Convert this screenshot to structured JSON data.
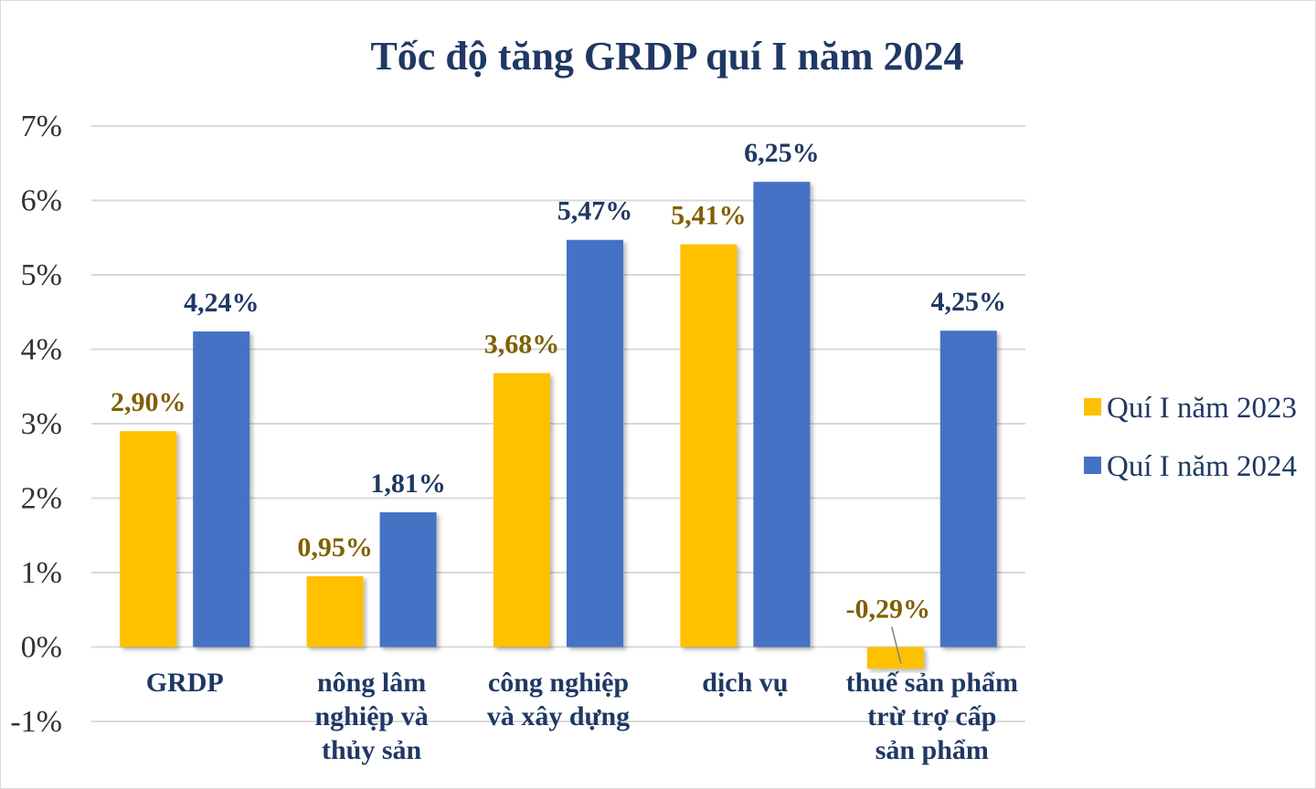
{
  "chart_data": {
    "type": "bar",
    "title": "Tốc độ tăng GRDP quí I năm 2024",
    "xlabel": "",
    "ylabel": "",
    "ylim": [
      -1,
      7
    ],
    "yticks": [
      "7%",
      "6%",
      "5%",
      "4%",
      "3%",
      "2%",
      "1%",
      "0%",
      "-1%"
    ],
    "yticks_values": [
      7,
      6,
      5,
      4,
      3,
      2,
      1,
      0,
      -1
    ],
    "categories": [
      [
        "GRDP"
      ],
      [
        "nông lâm",
        "nghiệp và",
        "thủy sản"
      ],
      [
        "công nghiệp",
        "và xây dựng"
      ],
      [
        "dịch vụ"
      ],
      [
        "thuế sản phẩm",
        "trừ trợ cấp",
        "sản phẩm"
      ]
    ],
    "series": [
      {
        "name": "Quí I năm 2023",
        "color": "#FFC000",
        "label_color": "#7F6000",
        "values": [
          2.9,
          0.95,
          3.68,
          5.41,
          -0.29
        ],
        "labels": [
          "2,90%",
          "0,95%",
          "3,68%",
          "5,41%",
          "-0,29%"
        ]
      },
      {
        "name": "Quí I năm 2024",
        "color": "#4472C4",
        "label_color": "#1F3864",
        "values": [
          4.24,
          1.81,
          5.47,
          6.25,
          4.25
        ],
        "labels": [
          "4,24%",
          "1,81%",
          "5,47%",
          "6,25%",
          "4,25%"
        ]
      }
    ],
    "grid": true,
    "legend_position": "right"
  }
}
